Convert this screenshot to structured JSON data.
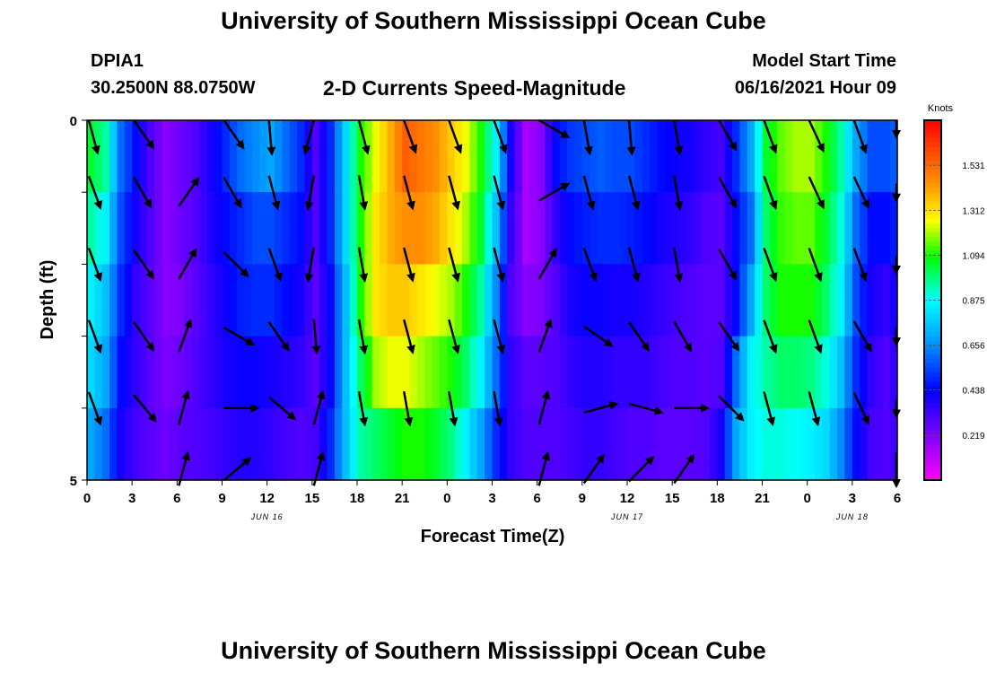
{
  "header": {
    "title": "University of Southern Mississippi Ocean Cube",
    "station_id": "DPIA1",
    "station_coords": "30.2500N  88.0750W",
    "product": "2-D Currents Speed-Magnitude",
    "model_start_label": "Model Start Time",
    "model_start_value": "06/16/2021 Hour 09"
  },
  "footer": {
    "title": "University of Southern Mississippi Ocean Cube"
  },
  "chart_data": {
    "type": "heatmap",
    "title": "2-D Currents Speed-Magnitude",
    "xlabel": "Forecast Time(Z)",
    "ylabel": "Depth (ft)",
    "x_hours": [
      0,
      3,
      6,
      9,
      12,
      15,
      18,
      21,
      24,
      27,
      30,
      33,
      36,
      39,
      42,
      45,
      48,
      51,
      54
    ],
    "x_tick_labels": [
      "0",
      "3",
      "6",
      "9",
      "12",
      "15",
      "18",
      "21",
      "0",
      "3",
      "6",
      "9",
      "12",
      "15",
      "18",
      "21",
      "0",
      "3",
      "6"
    ],
    "xlim": [
      0,
      54
    ],
    "date_labels": [
      {
        "hour": 12,
        "text": "JUN 16"
      },
      {
        "hour": 36,
        "text": "JUN 17"
      },
      {
        "hour": 51,
        "text": "JUN 18"
      }
    ],
    "y_tick_labels": [
      {
        "depth": 0,
        "text": "0"
      },
      {
        "depth": 5,
        "text": "5"
      }
    ],
    "ylim": [
      0,
      5
    ],
    "depth_levels": 5,
    "colorbar": {
      "unit": "Knots",
      "range": [
        0,
        1.75
      ],
      "ticks": [
        0.219,
        0.438,
        0.656,
        0.875,
        1.094,
        1.312,
        1.531
      ],
      "tick_labels": [
        "0.219",
        "0.438",
        "0.656",
        "0.875",
        "1.094",
        "1.312",
        "1.531"
      ]
    },
    "speed_profile_hours": [
      0,
      1,
      2,
      3,
      4,
      5,
      6,
      7,
      8,
      9,
      10,
      11,
      12,
      13,
      14,
      15,
      16,
      17,
      18,
      19,
      20,
      21,
      22,
      23,
      24,
      25,
      26,
      27,
      28,
      29,
      30,
      31,
      32,
      33,
      34,
      35,
      36,
      37,
      38,
      39,
      40,
      41,
      42,
      43,
      44,
      45,
      46,
      47,
      48,
      49,
      50,
      51,
      52,
      53,
      54
    ],
    "speed_knots": [
      [
        1.05,
        0.95,
        0.6,
        0.45,
        0.3,
        0.2,
        0.25,
        0.3,
        0.4,
        0.5,
        0.6,
        0.65,
        0.7,
        0.6,
        0.5,
        0.3,
        0.5,
        0.8,
        1.1,
        1.25,
        1.4,
        1.55,
        1.5,
        1.45,
        1.35,
        1.25,
        1.1,
        0.85,
        0.4,
        0.15,
        0.2,
        0.45,
        0.52,
        0.55,
        0.58,
        0.55,
        0.55,
        0.5,
        0.45,
        0.42,
        0.4,
        0.35,
        0.32,
        0.5,
        0.7,
        1.05,
        1.15,
        1.2,
        1.2,
        1.1,
        0.95,
        0.7,
        0.55,
        0.55,
        0.6
      ],
      [
        0.95,
        0.85,
        0.55,
        0.4,
        0.3,
        0.2,
        0.25,
        0.3,
        0.38,
        0.45,
        0.5,
        0.55,
        0.55,
        0.5,
        0.45,
        0.3,
        0.5,
        0.8,
        1.1,
        1.3,
        1.4,
        1.45,
        1.45,
        1.4,
        1.3,
        1.2,
        1.05,
        0.75,
        0.35,
        0.15,
        0.2,
        0.35,
        0.45,
        0.48,
        0.5,
        0.5,
        0.48,
        0.45,
        0.4,
        0.38,
        0.35,
        0.3,
        0.28,
        0.45,
        0.6,
        1.0,
        1.12,
        1.15,
        1.15,
        1.05,
        0.9,
        0.6,
        0.45,
        0.45,
        0.5
      ],
      [
        0.85,
        0.75,
        0.5,
        0.35,
        0.28,
        0.2,
        0.22,
        0.28,
        0.35,
        0.42,
        0.48,
        0.5,
        0.5,
        0.45,
        0.4,
        0.28,
        0.45,
        0.75,
        1.1,
        1.3,
        1.35,
        1.35,
        1.3,
        1.25,
        1.2,
        1.1,
        0.95,
        0.65,
        0.3,
        0.2,
        0.22,
        0.3,
        0.4,
        0.42,
        0.42,
        0.4,
        0.4,
        0.38,
        0.35,
        0.32,
        0.3,
        0.28,
        0.28,
        0.45,
        0.7,
        1.0,
        1.1,
        1.1,
        1.1,
        1.0,
        0.85,
        0.55,
        0.4,
        0.35,
        0.45
      ],
      [
        0.8,
        0.7,
        0.45,
        0.35,
        0.28,
        0.22,
        0.25,
        0.3,
        0.35,
        0.4,
        0.42,
        0.42,
        0.4,
        0.38,
        0.35,
        0.28,
        0.45,
        0.75,
        1.0,
        1.2,
        1.25,
        1.25,
        1.2,
        1.15,
        1.1,
        1.0,
        0.85,
        0.6,
        0.35,
        0.28,
        0.28,
        0.3,
        0.35,
        0.38,
        0.38,
        0.35,
        0.35,
        0.35,
        0.32,
        0.3,
        0.3,
        0.28,
        0.3,
        0.6,
        0.85,
        0.95,
        1.0,
        1.0,
        0.98,
        0.9,
        0.75,
        0.5,
        0.35,
        0.3,
        0.4
      ],
      [
        0.7,
        0.6,
        0.4,
        0.32,
        0.28,
        0.25,
        0.28,
        0.3,
        0.32,
        0.35,
        0.38,
        0.38,
        0.35,
        0.32,
        0.3,
        0.32,
        0.5,
        0.75,
        0.95,
        1.0,
        1.05,
        1.1,
        1.1,
        1.05,
        0.98,
        0.85,
        0.7,
        0.5,
        0.35,
        0.3,
        0.3,
        0.3,
        0.32,
        0.35,
        0.35,
        0.32,
        0.3,
        0.3,
        0.28,
        0.28,
        0.28,
        0.3,
        0.4,
        0.7,
        0.85,
        0.9,
        0.9,
        0.88,
        0.85,
        0.8,
        0.65,
        0.45,
        0.32,
        0.3,
        0.35
      ]
    ],
    "vectors": {
      "hours": [
        0,
        3,
        6,
        9,
        12,
        15,
        18,
        21,
        24,
        27,
        30,
        33,
        36,
        39,
        42,
        45,
        48,
        51,
        54
      ],
      "direction_deg": [
        [
          165,
          145,
          150,
          145,
          175,
          195,
          165,
          160,
          160,
          160,
          120,
          170,
          175,
          170,
          150,
          160,
          155,
          160,
          180
        ],
        [
          160,
          150,
          35,
          150,
          165,
          190,
          170,
          165,
          165,
          165,
          60,
          165,
          165,
          170,
          150,
          160,
          155,
          155,
          180
        ],
        [
          160,
          145,
          30,
          135,
          160,
          190,
          170,
          165,
          165,
          165,
          30,
          160,
          165,
          170,
          150,
          160,
          160,
          160,
          180
        ],
        [
          160,
          145,
          20,
          120,
          145,
          175,
          170,
          165,
          165,
          165,
          20,
          125,
          145,
          150,
          145,
          160,
          160,
          150,
          180
        ],
        [
          160,
          140,
          15,
          90,
          130,
          15,
          170,
          170,
          170,
          170,
          15,
          75,
          105,
          90,
          135,
          165,
          165,
          155,
          180
        ],
        [
          0,
          0,
          15,
          50,
          0,
          15,
          0,
          0,
          0,
          0,
          15,
          35,
          45,
          35,
          0,
          0,
          0,
          0,
          180
        ]
      ],
      "length_units": [
        [
          1,
          1,
          0,
          1,
          1,
          1,
          1,
          1,
          1,
          1,
          1,
          1,
          1,
          1,
          1,
          1,
          1,
          1,
          0.5
        ],
        [
          1,
          1,
          1,
          1,
          1,
          1,
          1,
          1,
          1,
          1,
          1,
          1,
          1,
          1,
          1,
          1,
          1,
          1,
          0.5
        ],
        [
          1,
          1,
          1,
          1,
          1,
          1,
          1,
          1,
          1,
          1,
          1,
          1,
          1,
          1,
          1,
          1,
          1,
          1,
          0.5
        ],
        [
          1,
          1,
          1,
          1,
          1,
          1,
          1,
          1,
          1,
          1,
          1,
          1,
          1,
          1,
          1,
          1,
          1,
          1,
          0.5
        ],
        [
          1,
          1,
          1,
          1,
          1,
          1,
          1,
          1,
          1,
          1,
          1,
          1,
          1,
          1,
          1,
          1,
          1,
          1,
          0.5
        ],
        [
          0,
          0,
          1,
          1,
          0,
          1,
          0,
          0,
          0,
          0,
          1,
          1,
          1,
          1,
          0,
          0,
          0,
          0,
          1
        ]
      ]
    }
  }
}
